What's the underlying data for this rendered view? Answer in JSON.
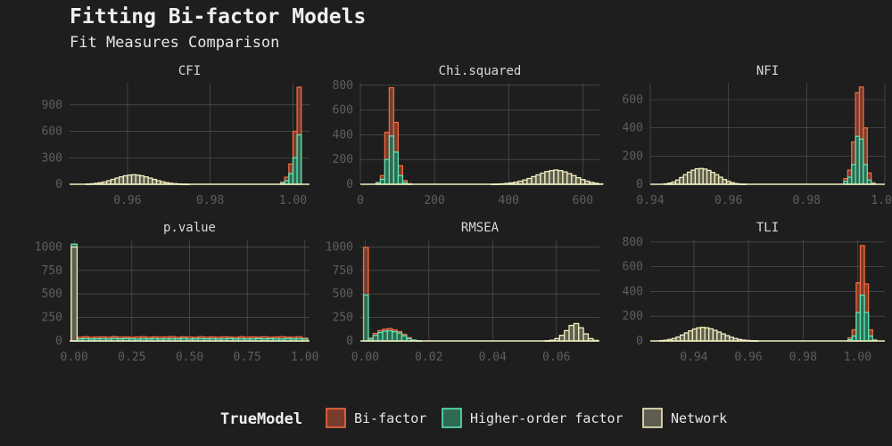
{
  "title": "Fitting Bi-factor Models",
  "subtitle": "Fit Measures Comparison",
  "legend": {
    "title": "TrueModel",
    "items": [
      {
        "label": "Bi-factor",
        "fill": "#793c2c",
        "stroke": "#f4693f"
      },
      {
        "label": "Higher-order factor",
        "fill": "#2f6b51",
        "stroke": "#5de3b5"
      },
      {
        "label": "Network",
        "fill": "#5f5d4f",
        "stroke": "#f1efbf"
      }
    ]
  },
  "chart_data": [
    {
      "type": "bar",
      "title": "CFI",
      "xlim": [
        0.946,
        1.004
      ],
      "ylim": [
        0,
        1150
      ],
      "xticks": [
        0.96,
        0.98,
        1.0
      ],
      "xtick_labels": [
        "0.96",
        "0.98",
        "1.00"
      ],
      "yticks": [
        0,
        300,
        600,
        900
      ],
      "ytick_labels": [
        "0",
        "300",
        "600",
        "900"
      ],
      "bins": {
        "start": 0.948,
        "width": 0.001,
        "count": 54
      },
      "series": [
        {
          "key": "network",
          "values": [
            0,
            0,
            3,
            6,
            11,
            18,
            26,
            40,
            55,
            70,
            84,
            96,
            104,
            108,
            104,
            96,
            84,
            70,
            55,
            40,
            28,
            18,
            11,
            7,
            4,
            2,
            1,
            0,
            0,
            0,
            0,
            0,
            0,
            0,
            0,
            0,
            0,
            0,
            0,
            0,
            0,
            0,
            0,
            0,
            0,
            0,
            0,
            0,
            0,
            0,
            0,
            0,
            0,
            0
          ]
        },
        {
          "key": "higher",
          "values": [
            0,
            0,
            0,
            0,
            0,
            0,
            0,
            0,
            0,
            0,
            0,
            0,
            0,
            0,
            0,
            0,
            0,
            0,
            0,
            0,
            0,
            0,
            0,
            0,
            0,
            0,
            0,
            0,
            0,
            0,
            0,
            0,
            0,
            0,
            0,
            0,
            0,
            0,
            0,
            0,
            0,
            0,
            0,
            0,
            0,
            0,
            0,
            0,
            0,
            12,
            40,
            120,
            300,
            560
          ]
        },
        {
          "key": "bifactor",
          "values": [
            0,
            0,
            0,
            0,
            0,
            0,
            0,
            0,
            0,
            0,
            0,
            0,
            0,
            0,
            0,
            0,
            0,
            0,
            0,
            0,
            0,
            0,
            0,
            0,
            0,
            0,
            0,
            0,
            0,
            0,
            0,
            0,
            0,
            0,
            0,
            0,
            0,
            0,
            0,
            0,
            0,
            0,
            0,
            0,
            0,
            0,
            0,
            0,
            0,
            25,
            80,
            230,
            600,
            1100
          ]
        }
      ]
    },
    {
      "type": "bar",
      "title": "Chi.squared",
      "xlim": [
        0,
        645
      ],
      "ylim": [
        0,
        820
      ],
      "xticks": [
        0,
        200,
        400,
        600
      ],
      "xtick_labels": [
        "0",
        "200",
        "400",
        "600"
      ],
      "yticks": [
        0,
        200,
        400,
        600,
        800
      ],
      "ytick_labels": [
        "0",
        "200",
        "400",
        "600",
        "800"
      ],
      "bins": {
        "start": 30,
        "width": 12,
        "count": 52
      },
      "series": [
        {
          "key": "network",
          "values": [
            0,
            0,
            0,
            0,
            0,
            0,
            0,
            0,
            0,
            0,
            0,
            0,
            0,
            0,
            0,
            0,
            0,
            0,
            0,
            0,
            0,
            0,
            0,
            0,
            0,
            0,
            0,
            1,
            2,
            4,
            7,
            11,
            17,
            25,
            35,
            47,
            62,
            76,
            90,
            103,
            110,
            115,
            110,
            100,
            86,
            70,
            53,
            38,
            25,
            15,
            8,
            3
          ]
        },
        {
          "key": "higher",
          "values": [
            0,
            10,
            40,
            200,
            390,
            260,
            70,
            12,
            2,
            0,
            0,
            0,
            0,
            0,
            0,
            0,
            0,
            0,
            0,
            0,
            0,
            0,
            0,
            0,
            0,
            0,
            0,
            0,
            0,
            0,
            0,
            0,
            0,
            0,
            0,
            0,
            0,
            0,
            0,
            0,
            0,
            0,
            0,
            0,
            0,
            0,
            0,
            0,
            0,
            0,
            0,
            0
          ]
        },
        {
          "key": "bifactor",
          "values": [
            0,
            15,
            70,
            420,
            780,
            500,
            150,
            30,
            5,
            0,
            0,
            0,
            0,
            0,
            0,
            0,
            0,
            0,
            0,
            0,
            0,
            0,
            0,
            0,
            0,
            0,
            0,
            0,
            0,
            0,
            0,
            0,
            0,
            0,
            0,
            0,
            0,
            0,
            0,
            0,
            0,
            0,
            0,
            0,
            0,
            0,
            0,
            0,
            0,
            0,
            0,
            0
          ]
        }
      ]
    },
    {
      "type": "bar",
      "title": "NFI",
      "xlim": [
        0.94,
        1.0
      ],
      "ylim": [
        0,
        720
      ],
      "xticks": [
        0.94,
        0.96,
        0.98,
        1.0
      ],
      "xtick_labels": [
        "0.94",
        "0.96",
        "0.98",
        "1.00"
      ],
      "yticks": [
        0,
        200,
        400,
        600
      ],
      "ytick_labels": [
        "0",
        "200",
        "400",
        "600"
      ],
      "bins": {
        "start": 0.9415,
        "width": 0.001,
        "count": 56
      },
      "series": [
        {
          "key": "network",
          "values": [
            0,
            0,
            3,
            8,
            16,
            30,
            48,
            68,
            86,
            100,
            110,
            112,
            108,
            98,
            84,
            68,
            50,
            34,
            20,
            11,
            5,
            2,
            1,
            0,
            0,
            0,
            0,
            0,
            0,
            0,
            0,
            0,
            0,
            0,
            0,
            0,
            0,
            0,
            0,
            0,
            0,
            0,
            0,
            0,
            0,
            0,
            0,
            0,
            0,
            0,
            0,
            0,
            0,
            0,
            0,
            0
          ]
        },
        {
          "key": "higher",
          "values": [
            0,
            0,
            0,
            0,
            0,
            0,
            0,
            0,
            0,
            0,
            0,
            0,
            0,
            0,
            0,
            0,
            0,
            0,
            0,
            0,
            0,
            0,
            0,
            0,
            0,
            0,
            0,
            0,
            0,
            0,
            0,
            0,
            0,
            0,
            0,
            0,
            0,
            0,
            0,
            0,
            0,
            0,
            0,
            0,
            0,
            0,
            0,
            0,
            20,
            50,
            140,
            340,
            320,
            140,
            30,
            5
          ]
        },
        {
          "key": "bifactor",
          "values": [
            0,
            0,
            0,
            0,
            0,
            0,
            0,
            0,
            0,
            0,
            0,
            0,
            0,
            0,
            0,
            0,
            0,
            0,
            0,
            0,
            0,
            0,
            0,
            0,
            0,
            0,
            0,
            0,
            0,
            0,
            0,
            0,
            0,
            0,
            0,
            0,
            0,
            0,
            0,
            0,
            0,
            0,
            0,
            0,
            0,
            0,
            0,
            0,
            40,
            100,
            300,
            650,
            690,
            400,
            80,
            10
          ]
        }
      ]
    },
    {
      "type": "bar",
      "title": "p.value",
      "xlim": [
        -0.02,
        1.02
      ],
      "ylim": [
        0,
        1080
      ],
      "xticks": [
        0.0,
        0.25,
        0.5,
        0.75,
        1.0
      ],
      "xtick_labels": [
        "0.00",
        "0.25",
        "0.50",
        "0.75",
        "1.00"
      ],
      "yticks": [
        0,
        250,
        500,
        750,
        1000
      ],
      "ytick_labels": [
        "0",
        "250",
        "500",
        "750",
        "1000"
      ],
      "bins": {
        "start": -0.0125,
        "width": 0.025,
        "count": 41
      },
      "series": [
        {
          "key": "network",
          "values": [
            1000,
            0,
            0,
            0,
            0,
            0,
            0,
            0,
            0,
            0,
            0,
            0,
            0,
            0,
            0,
            0,
            0,
            0,
            0,
            0,
            0,
            0,
            0,
            0,
            0,
            0,
            0,
            0,
            0,
            0,
            0,
            0,
            0,
            0,
            0,
            0,
            0,
            0,
            0,
            0,
            0
          ]
        },
        {
          "key": "higher",
          "values": [
            1030,
            22,
            25,
            20,
            23,
            24,
            21,
            26,
            22,
            25,
            23,
            20,
            24,
            22,
            25,
            21,
            23,
            24,
            22,
            26,
            21,
            23,
            25,
            22,
            24,
            21,
            23,
            26,
            22,
            24,
            21,
            23,
            25,
            22,
            24,
            23,
            21,
            25,
            22,
            24,
            20
          ]
        },
        {
          "key": "bifactor",
          "values": [
            1030,
            40,
            45,
            38,
            42,
            44,
            40,
            46,
            41,
            43,
            39,
            42,
            45,
            40,
            44,
            41,
            43,
            46,
            40,
            44,
            42,
            39,
            45,
            41,
            43,
            40,
            44,
            42,
            38,
            45,
            41,
            43,
            40,
            44,
            39,
            42,
            45,
            41,
            40,
            44,
            30
          ]
        }
      ]
    },
    {
      "type": "bar",
      "title": "RMSEA",
      "xlim": [
        -0.0015,
        0.0735
      ],
      "ylim": [
        0,
        1080
      ],
      "xticks": [
        0.0,
        0.02,
        0.04,
        0.06
      ],
      "xtick_labels": [
        "0.00",
        "0.02",
        "0.04",
        "0.06"
      ],
      "yticks": [
        0,
        250,
        500,
        750,
        1000
      ],
      "ytick_labels": [
        "0",
        "250",
        "500",
        "750",
        "1000"
      ],
      "bins": {
        "start": -0.0005,
        "width": 0.0015,
        "count": 49
      },
      "series": [
        {
          "key": "network",
          "values": [
            0,
            0,
            0,
            0,
            0,
            0,
            0,
            0,
            0,
            0,
            0,
            0,
            0,
            0,
            0,
            0,
            0,
            0,
            0,
            0,
            0,
            0,
            0,
            0,
            0,
            0,
            0,
            0,
            0,
            0,
            0,
            0,
            0,
            0,
            0,
            0,
            0,
            0,
            3,
            8,
            25,
            60,
            110,
            165,
            185,
            140,
            75,
            25,
            6
          ]
        },
        {
          "key": "higher",
          "values": [
            490,
            20,
            60,
            90,
            105,
            108,
            98,
            85,
            55,
            25,
            8,
            2,
            0,
            0,
            0,
            0,
            0,
            0,
            0,
            0,
            0,
            0,
            0,
            0,
            0,
            0,
            0,
            0,
            0,
            0,
            0,
            0,
            0,
            0,
            0,
            0,
            0,
            0,
            0,
            0,
            0,
            0,
            0,
            0,
            0,
            0,
            0,
            0,
            0
          ]
        },
        {
          "key": "bifactor",
          "values": [
            995,
            30,
            80,
            110,
            125,
            132,
            118,
            100,
            70,
            35,
            10,
            3,
            0,
            0,
            0,
            0,
            0,
            0,
            0,
            0,
            0,
            0,
            0,
            0,
            0,
            0,
            0,
            0,
            0,
            0,
            0,
            0,
            0,
            0,
            0,
            0,
            0,
            0,
            0,
            0,
            0,
            0,
            0,
            0,
            0,
            0,
            0,
            0,
            0
          ]
        }
      ]
    },
    {
      "type": "bar",
      "title": "TLI",
      "xlim": [
        0.924,
        1.01
      ],
      "ylim": [
        0,
        820
      ],
      "xticks": [
        0.94,
        0.96,
        0.98,
        1.0
      ],
      "xtick_labels": [
        "0.94",
        "0.96",
        "0.98",
        "1.00"
      ],
      "yticks": [
        0,
        200,
        400,
        600,
        800
      ],
      "ytick_labels": [
        "0",
        "200",
        "400",
        "600",
        "800"
      ],
      "bins": {
        "start": 0.926,
        "width": 0.0015,
        "count": 54
      },
      "series": [
        {
          "key": "network",
          "values": [
            0,
            3,
            6,
            12,
            20,
            32,
            48,
            65,
            82,
            96,
            106,
            110,
            106,
            98,
            86,
            72,
            57,
            43,
            30,
            20,
            12,
            7,
            4,
            2,
            1,
            0,
            0,
            0,
            0,
            0,
            0,
            0,
            0,
            0,
            0,
            0,
            0,
            0,
            0,
            0,
            0,
            0,
            0,
            0,
            0,
            0,
            0,
            0,
            0,
            0,
            0,
            0,
            0,
            0
          ]
        },
        {
          "key": "higher",
          "values": [
            0,
            0,
            0,
            0,
            0,
            0,
            0,
            0,
            0,
            0,
            0,
            0,
            0,
            0,
            0,
            0,
            0,
            0,
            0,
            0,
            0,
            0,
            0,
            0,
            0,
            0,
            0,
            0,
            0,
            0,
            0,
            0,
            0,
            0,
            0,
            0,
            0,
            0,
            0,
            0,
            0,
            0,
            0,
            0,
            0,
            0,
            0,
            12,
            40,
            230,
            370,
            230,
            40,
            5
          ]
        },
        {
          "key": "bifactor",
          "values": [
            0,
            0,
            0,
            0,
            0,
            0,
            0,
            0,
            0,
            0,
            0,
            0,
            0,
            0,
            0,
            0,
            0,
            0,
            0,
            0,
            0,
            0,
            0,
            0,
            0,
            0,
            0,
            0,
            0,
            0,
            0,
            0,
            0,
            0,
            0,
            0,
            0,
            0,
            0,
            0,
            0,
            0,
            0,
            0,
            0,
            0,
            0,
            25,
            90,
            470,
            770,
            460,
            90,
            10
          ]
        }
      ]
    }
  ]
}
